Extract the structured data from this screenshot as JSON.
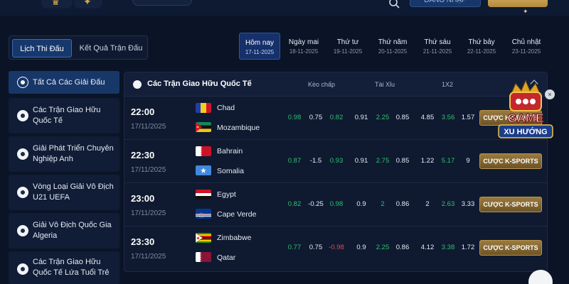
{
  "tabs": [
    {
      "label": "Lịch Thi Đấu",
      "active": true
    },
    {
      "label": "Kết Quả Trận Đấu",
      "active": false
    }
  ],
  "dates": [
    {
      "name": "Hôm nay",
      "date": "17-11-2025",
      "active": true
    },
    {
      "name": "Ngày mai",
      "date": "18-11-2025"
    },
    {
      "name": "Thứ tư",
      "date": "19-11-2025"
    },
    {
      "name": "Thứ năm",
      "date": "20-11-2025"
    },
    {
      "name": "Thứ sáu",
      "date": "21-11-2025"
    },
    {
      "name": "Thứ bảy",
      "date": "22-11-2025"
    },
    {
      "name": "Chủ nhật",
      "date": "23-11-2025"
    }
  ],
  "sidebar": {
    "items": [
      {
        "label": "Tất Cả Các Giải Đấu",
        "active": true
      },
      {
        "label": "Các Trận Giao Hữu Quốc Tế"
      },
      {
        "label": "Giải Phát Triển Chuyên Nghiệp Anh"
      },
      {
        "label": "Vòng Loại Giải Vô Địch U21 UEFA"
      },
      {
        "label": "Giải Vô Địch Quốc Gia Algeria"
      },
      {
        "label": "Các Trận Giao Hữu Quốc Tế Lứa Tuổi Trẻ"
      }
    ]
  },
  "league": {
    "title": "Các Trận Giao Hữu Quốc Tế",
    "col_handicap": "Kèo chấp",
    "col_overunder": "Tài Xỉu",
    "col_1x2": "1X2"
  },
  "matches": [
    {
      "time": "22:00",
      "date": "17/11/2025",
      "home": "Chad",
      "away": "Mozambique",
      "hc": [
        "0.98",
        "0.75",
        "0.82"
      ],
      "ou": [
        "0.91",
        "2.25",
        "0.85"
      ],
      "x12": [
        "4.85",
        "3.56",
        "1.57"
      ],
      "bet": "CƯỢC K-SPORTS"
    },
    {
      "time": "22:30",
      "date": "17/11/2025",
      "home": "Bahrain",
      "away": "Somalia",
      "hc": [
        "0.87",
        "-1.5",
        "0.93"
      ],
      "ou": [
        "0.91",
        "2.75",
        "0.85"
      ],
      "x12": [
        "1.22",
        "5.17",
        "9"
      ],
      "bet": "CƯỢC K-SPORTS"
    },
    {
      "time": "23:00",
      "date": "17/11/2025",
      "home": "Egypt",
      "away": "Cape Verde",
      "hc": [
        "0.82",
        "-0.25",
        "0.98"
      ],
      "ou": [
        "0.9",
        "2",
        "0.86"
      ],
      "x12": [
        "2",
        "2.63",
        "3.33"
      ],
      "bet": "CƯỢC K-SPORTS"
    },
    {
      "time": "23:30",
      "date": "17/11/2025",
      "home": "Zimbabwe",
      "away": "Qatar",
      "hc": [
        "0.77",
        "0.75",
        "-0.98"
      ],
      "ou": [
        "0.9",
        "2.25",
        "0.86"
      ],
      "x12": [
        "4.12",
        "3.38",
        "1.72"
      ],
      "bet": "CƯỢC K-SPORTS"
    }
  ],
  "promo": {
    "line1": "GAME",
    "line2": "XU HƯỚNG",
    "close": "×"
  },
  "header": {
    "login_label": "ĐĂNG NHẬP"
  },
  "colors": {
    "accent_gold": "#b8954e",
    "odd_green": "#2fbf71",
    "odd_red": "#e5484d",
    "active_blue": "#173769"
  },
  "icons": {
    "search": "search-icon",
    "league": "soccer-ball-icon",
    "collapse": "chevron-up-icon"
  }
}
